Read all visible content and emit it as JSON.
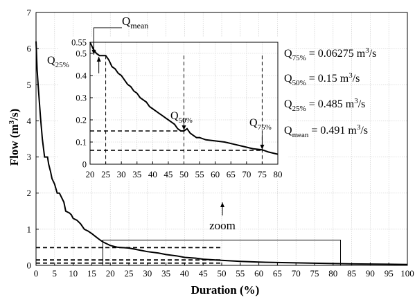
{
  "chart_data": [
    {
      "type": "line",
      "role": "main",
      "xlabel": "Duration (%)",
      "ylabel": {
        "prefix": "Flow (m",
        "sup": "3",
        "suffix": "/s)"
      },
      "xlim": [
        0,
        100
      ],
      "ylim": [
        0,
        7
      ],
      "xticks": [
        0,
        5,
        10,
        15,
        20,
        25,
        30,
        35,
        40,
        45,
        50,
        55,
        60,
        65,
        70,
        75,
        80,
        85,
        90,
        95,
        100
      ],
      "yticks": [
        0,
        1,
        2,
        3,
        4,
        5,
        6,
        7
      ],
      "grid": true,
      "series": [
        {
          "x": [
            0,
            0.3,
            0.7,
            1.2,
            1.7,
            2.3,
            2.6,
            3.1,
            3.4,
            3.9,
            4.3,
            5,
            5.7,
            6.3,
            7.5,
            8,
            9,
            9.5,
            10,
            11,
            12,
            13,
            14,
            15,
            16,
            17,
            18,
            19,
            20,
            22,
            25,
            28,
            30,
            33,
            35,
            38,
            40,
            43,
            45,
            48,
            50,
            55,
            60,
            65,
            70,
            75,
            80,
            85,
            90,
            95,
            100
          ],
          "y": [
            6.2,
            5.4,
            4.8,
            4.1,
            3.5,
            3.0,
            3.0,
            3.0,
            2.8,
            2.6,
            2.4,
            2.25,
            2.0,
            2.0,
            1.75,
            1.5,
            1.45,
            1.4,
            1.3,
            1.25,
            1.15,
            1.0,
            0.95,
            0.88,
            0.8,
            0.72,
            0.65,
            0.6,
            0.55,
            0.5,
            0.48,
            0.42,
            0.38,
            0.34,
            0.3,
            0.26,
            0.22,
            0.2,
            0.17,
            0.15,
            0.14,
            0.11,
            0.09,
            0.08,
            0.07,
            0.06,
            0.05,
            0.04,
            0.035,
            0.03,
            0.025
          ]
        }
      ],
      "reference_lines_y": [
        0.491,
        0.15,
        0.06275
      ],
      "reference_lines_x_end": 50,
      "zoom_box": {
        "x": [
          18,
          82
        ],
        "y": [
          0,
          0.7
        ]
      }
    },
    {
      "type": "line",
      "role": "inset",
      "xlim": [
        20,
        80
      ],
      "ylim": [
        0,
        0.55
      ],
      "xticks": [
        20,
        25,
        30,
        35,
        40,
        45,
        50,
        55,
        60,
        65,
        70,
        75,
        80
      ],
      "yticks": [
        0,
        0.1,
        0.2,
        0.3,
        0.4,
        0.5,
        0.55
      ],
      "ytick_labels": [
        "0",
        "0.1",
        "0.2",
        "0.3",
        "0.4",
        "0.5",
        "0.55"
      ],
      "grid": true,
      "series": [
        {
          "x": [
            20,
            21,
            22,
            23,
            24,
            25,
            26,
            27,
            28,
            29,
            30,
            31,
            32,
            33,
            34,
            35,
            36,
            37,
            38,
            39,
            40,
            41,
            42,
            43,
            44,
            45,
            46,
            47,
            48,
            49,
            50,
            51,
            52,
            53,
            54,
            55,
            57,
            60,
            63,
            66,
            69,
            72,
            75,
            77,
            80
          ],
          "y": [
            0.55,
            0.52,
            0.5,
            0.49,
            0.49,
            0.49,
            0.47,
            0.44,
            0.43,
            0.41,
            0.4,
            0.38,
            0.36,
            0.35,
            0.33,
            0.32,
            0.3,
            0.29,
            0.28,
            0.26,
            0.25,
            0.24,
            0.23,
            0.22,
            0.21,
            0.2,
            0.19,
            0.18,
            0.16,
            0.15,
            0.15,
            0.16,
            0.14,
            0.13,
            0.12,
            0.12,
            0.11,
            0.105,
            0.1,
            0.09,
            0.08,
            0.07,
            0.065,
            0.055,
            0.045
          ]
        }
      ],
      "reference_lines": [
        {
          "y": 0.15,
          "x_end": 50
        },
        {
          "y": 0.06275,
          "x_end": 75
        }
      ],
      "vertical_lines": [
        25,
        50,
        75
      ]
    }
  ],
  "annotations": {
    "q_mean_top": {
      "base": "Q",
      "sub": "mean"
    },
    "q25_inset": {
      "base": "Q",
      "sub": "25%"
    },
    "q50_inset": {
      "base": "Q",
      "sub": "50%"
    },
    "q75_inset": {
      "base": "Q",
      "sub": "75%"
    },
    "zoom": "zoom"
  },
  "legend_values": [
    {
      "base": "Q",
      "sub": "75%",
      "text": " = 0.06275 m",
      "sup": "3",
      "tail": "/s"
    },
    {
      "base": "Q",
      "sub": "50%",
      "text": " = 0.15 m",
      "sup": "3",
      "tail": "/s"
    },
    {
      "base": "Q",
      "sub": "25%",
      "text": " = 0.485 m",
      "sup": "3",
      "tail": "/s"
    },
    {
      "base": "Q",
      "sub": "mean",
      "text": " = 0.491 m",
      "sup": "3",
      "tail": "/s"
    }
  ]
}
